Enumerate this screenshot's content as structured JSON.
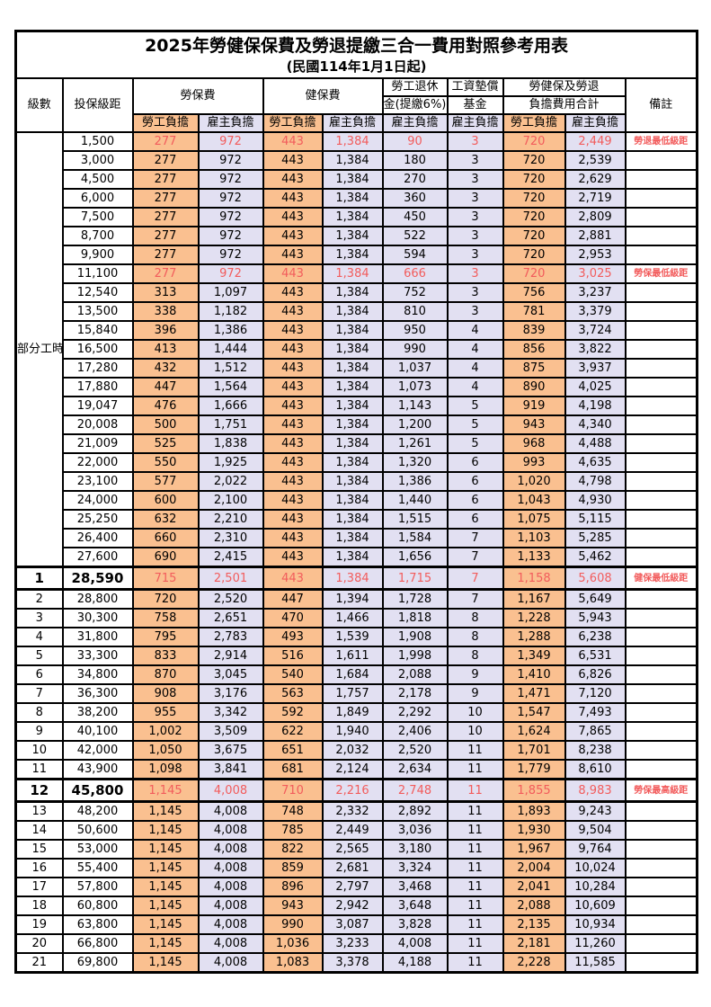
{
  "title": "2025年勞健保保費及勞退提繳三合一費用對照參考用表",
  "subtitle": "(民國114年1月1日起)",
  "colors": {
    "employee_share_bg": "#FAC090",
    "employer_share_bg": "#E2E0F2",
    "highlight_text": "#F25C5C",
    "grid_line": "#000000"
  },
  "header": {
    "level": "級數",
    "bracket": "投保級距",
    "labor_fee": "勞保費",
    "health_fee": "健保費",
    "pension_line1": "勞工退休",
    "pension_line2": "金(提繳6%)",
    "wage_fund_line1": "工資墊償",
    "wage_fund_line2": "基金",
    "total_line1": "勞健保及勞退",
    "total_line2": "負擔費用合計",
    "note": "備註",
    "employee_share": "勞工負擔",
    "employer_share": "雇主負擔"
  },
  "part_time_label": "部分工時",
  "rows": [
    [
      "",
      "1,500",
      "277",
      "972",
      "443",
      "1,384",
      "90",
      "3",
      "720",
      "2,449",
      "勞退最低級距",
      "red"
    ],
    [
      "",
      "3,000",
      "277",
      "972",
      "443",
      "1,384",
      "180",
      "3",
      "720",
      "2,539",
      "",
      ""
    ],
    [
      "",
      "4,500",
      "277",
      "972",
      "443",
      "1,384",
      "270",
      "3",
      "720",
      "2,629",
      "",
      ""
    ],
    [
      "",
      "6,000",
      "277",
      "972",
      "443",
      "1,384",
      "360",
      "3",
      "720",
      "2,719",
      "",
      ""
    ],
    [
      "",
      "7,500",
      "277",
      "972",
      "443",
      "1,384",
      "450",
      "3",
      "720",
      "2,809",
      "",
      ""
    ],
    [
      "",
      "8,700",
      "277",
      "972",
      "443",
      "1,384",
      "522",
      "3",
      "720",
      "2,881",
      "",
      ""
    ],
    [
      "",
      "9,900",
      "277",
      "972",
      "443",
      "1,384",
      "594",
      "3",
      "720",
      "2,953",
      "",
      ""
    ],
    [
      "",
      "11,100",
      "277",
      "972",
      "443",
      "1,384",
      "666",
      "3",
      "720",
      "3,025",
      "勞保最低級距",
      "red"
    ],
    [
      "",
      "12,540",
      "313",
      "1,097",
      "443",
      "1,384",
      "752",
      "3",
      "756",
      "3,237",
      "",
      ""
    ],
    [
      "",
      "13,500",
      "338",
      "1,182",
      "443",
      "1,384",
      "810",
      "3",
      "781",
      "3,379",
      "",
      ""
    ],
    [
      "",
      "15,840",
      "396",
      "1,386",
      "443",
      "1,384",
      "950",
      "4",
      "839",
      "3,724",
      "",
      ""
    ],
    [
      "",
      "16,500",
      "413",
      "1,444",
      "443",
      "1,384",
      "990",
      "4",
      "856",
      "3,822",
      "",
      ""
    ],
    [
      "",
      "17,280",
      "432",
      "1,512",
      "443",
      "1,384",
      "1,037",
      "4",
      "875",
      "3,937",
      "",
      ""
    ],
    [
      "",
      "17,880",
      "447",
      "1,564",
      "443",
      "1,384",
      "1,073",
      "4",
      "890",
      "4,025",
      "",
      ""
    ],
    [
      "",
      "19,047",
      "476",
      "1,666",
      "443",
      "1,384",
      "1,143",
      "5",
      "919",
      "4,198",
      "",
      ""
    ],
    [
      "",
      "20,008",
      "500",
      "1,751",
      "443",
      "1,384",
      "1,200",
      "5",
      "943",
      "4,340",
      "",
      ""
    ],
    [
      "",
      "21,009",
      "525",
      "1,838",
      "443",
      "1,384",
      "1,261",
      "5",
      "968",
      "4,488",
      "",
      ""
    ],
    [
      "",
      "22,000",
      "550",
      "1,925",
      "443",
      "1,384",
      "1,320",
      "6",
      "993",
      "4,635",
      "",
      ""
    ],
    [
      "",
      "23,100",
      "577",
      "2,022",
      "443",
      "1,384",
      "1,386",
      "6",
      "1,020",
      "4,798",
      "",
      ""
    ],
    [
      "",
      "24,000",
      "600",
      "2,100",
      "443",
      "1,384",
      "1,440",
      "6",
      "1,043",
      "4,930",
      "",
      ""
    ],
    [
      "",
      "25,250",
      "632",
      "2,210",
      "443",
      "1,384",
      "1,515",
      "6",
      "1,075",
      "5,115",
      "",
      ""
    ],
    [
      "",
      "26,400",
      "660",
      "2,310",
      "443",
      "1,384",
      "1,584",
      "7",
      "1,103",
      "5,285",
      "",
      ""
    ],
    [
      "",
      "27,600",
      "690",
      "2,415",
      "443",
      "1,384",
      "1,656",
      "7",
      "1,133",
      "5,462",
      "",
      ""
    ],
    [
      "1",
      "28,590",
      "715",
      "2,501",
      "443",
      "1,384",
      "1,715",
      "7",
      "1,158",
      "5,608",
      "健保最低級距",
      "red-bold"
    ],
    [
      "2",
      "28,800",
      "720",
      "2,520",
      "447",
      "1,394",
      "1,728",
      "7",
      "1,167",
      "5,649",
      "",
      ""
    ],
    [
      "3",
      "30,300",
      "758",
      "2,651",
      "470",
      "1,466",
      "1,818",
      "8",
      "1,228",
      "5,943",
      "",
      ""
    ],
    [
      "4",
      "31,800",
      "795",
      "2,783",
      "493",
      "1,539",
      "1,908",
      "8",
      "1,288",
      "6,238",
      "",
      ""
    ],
    [
      "5",
      "33,300",
      "833",
      "2,914",
      "516",
      "1,611",
      "1,998",
      "8",
      "1,349",
      "6,531",
      "",
      ""
    ],
    [
      "6",
      "34,800",
      "870",
      "3,045",
      "540",
      "1,684",
      "2,088",
      "9",
      "1,410",
      "6,826",
      "",
      ""
    ],
    [
      "7",
      "36,300",
      "908",
      "3,176",
      "563",
      "1,757",
      "2,178",
      "9",
      "1,471",
      "7,120",
      "",
      ""
    ],
    [
      "8",
      "38,200",
      "955",
      "3,342",
      "592",
      "1,849",
      "2,292",
      "10",
      "1,547",
      "7,493",
      "",
      ""
    ],
    [
      "9",
      "40,100",
      "1,002",
      "3,509",
      "622",
      "1,940",
      "2,406",
      "10",
      "1,624",
      "7,865",
      "",
      ""
    ],
    [
      "10",
      "42,000",
      "1,050",
      "3,675",
      "651",
      "2,032",
      "2,520",
      "11",
      "1,701",
      "8,238",
      "",
      ""
    ],
    [
      "11",
      "43,900",
      "1,098",
      "3,841",
      "681",
      "2,124",
      "2,634",
      "11",
      "1,779",
      "8,610",
      "",
      ""
    ],
    [
      "12",
      "45,800",
      "1,145",
      "4,008",
      "710",
      "2,216",
      "2,748",
      "11",
      "1,855",
      "8,983",
      "勞保最高級距",
      "red-bold"
    ],
    [
      "13",
      "48,200",
      "1,145",
      "4,008",
      "748",
      "2,332",
      "2,892",
      "11",
      "1,893",
      "9,243",
      "",
      ""
    ],
    [
      "14",
      "50,600",
      "1,145",
      "4,008",
      "785",
      "2,449",
      "3,036",
      "11",
      "1,930",
      "9,504",
      "",
      ""
    ],
    [
      "15",
      "53,000",
      "1,145",
      "4,008",
      "822",
      "2,565",
      "3,180",
      "11",
      "1,967",
      "9,764",
      "",
      ""
    ],
    [
      "16",
      "55,400",
      "1,145",
      "4,008",
      "859",
      "2,681",
      "3,324",
      "11",
      "2,004",
      "10,024",
      "",
      ""
    ],
    [
      "17",
      "57,800",
      "1,145",
      "4,008",
      "896",
      "2,797",
      "3,468",
      "11",
      "2,041",
      "10,284",
      "",
      ""
    ],
    [
      "18",
      "60,800",
      "1,145",
      "4,008",
      "943",
      "2,942",
      "3,648",
      "11",
      "2,088",
      "10,609",
      "",
      ""
    ],
    [
      "19",
      "63,800",
      "1,145",
      "4,008",
      "990",
      "3,087",
      "3,828",
      "11",
      "2,135",
      "10,934",
      "",
      ""
    ],
    [
      "20",
      "66,800",
      "1,145",
      "4,008",
      "1,036",
      "3,233",
      "4,008",
      "11",
      "2,181",
      "11,260",
      "",
      ""
    ],
    [
      "21",
      "69,800",
      "1,145",
      "4,008",
      "1,083",
      "3,378",
      "4,188",
      "11",
      "2,228",
      "11,585",
      "",
      ""
    ]
  ]
}
